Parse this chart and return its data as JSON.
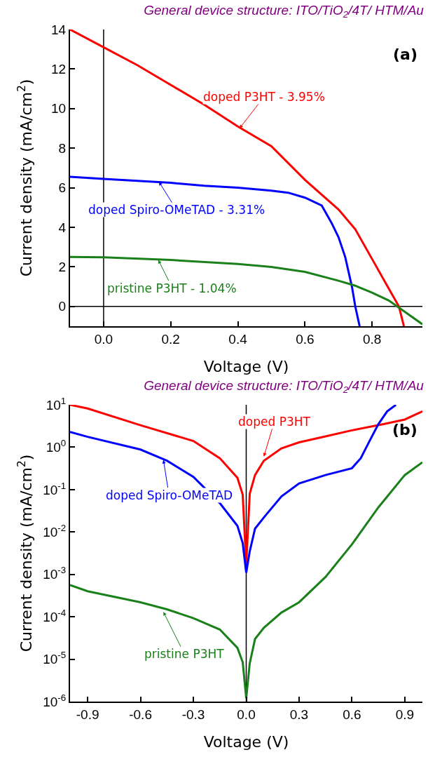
{
  "chart_data": [
    {
      "type": "line",
      "title": "General device structure: ITO/TiO$_{2}$/4T/ HTM/Au",
      "xlabel": "Voltage (V)",
      "ylabel": "Current density (mA/cm$^{2}$)",
      "xlim": [
        -0.1,
        0.95
      ],
      "ylim": [
        -1,
        14
      ],
      "xticks": [
        {
          "value": 0,
          "label": "0.0"
        },
        {
          "value": 0.2,
          "label": "0.2"
        },
        {
          "value": 0.4,
          "label": "0.4"
        },
        {
          "value": 0.6,
          "label": "0.6"
        },
        {
          "value": 0.8,
          "label": "0.8"
        }
      ],
      "yticks": [
        0,
        2,
        4,
        6,
        8,
        10,
        12,
        14
      ],
      "marker": "none",
      "line_style": "solid",
      "ref_lines": [
        {
          "axis": "x",
          "value": 0,
          "color": "#000000"
        },
        {
          "axis": "y",
          "value": 0,
          "color": "#000000"
        }
      ],
      "annotations": [
        "(a)",
        {
          "text": "doped P3HT - 3.95%",
          "x": 0.405,
          "y": 9.0
        },
        {
          "text": "doped Spiro-OMeTAD - 3.31%",
          "x": 0.165,
          "y": 6.3
        },
        {
          "text": "pristine P3HT - 1.04%",
          "x": 0.163,
          "y": 2.35
        }
      ],
      "series": [
        {
          "color": "#ff0000",
          "x": [
            -0.1,
            0,
            0.1,
            0.2,
            0.3,
            0.4,
            0.5,
            0.6,
            0.7,
            0.75,
            0.8,
            0.85,
            0.88,
            0.895
          ],
          "values": [
            14,
            13.1,
            12.2,
            11.2,
            10.2,
            9.1,
            8.1,
            6.4,
            4.9,
            3.9,
            2.4,
            0.9,
            0,
            -1
          ]
        },
        {
          "color": "#0000ff",
          "x": [
            -0.1,
            0,
            0.1,
            0.2,
            0.3,
            0.4,
            0.5,
            0.55,
            0.6,
            0.65,
            0.68,
            0.7,
            0.72,
            0.74,
            0.75,
            0.763
          ],
          "values": [
            6.55,
            6.45,
            6.35,
            6.25,
            6.1,
            6.0,
            5.85,
            5.75,
            5.5,
            5.1,
            4.2,
            3.5,
            2.5,
            1.0,
            0,
            -1
          ]
        },
        {
          "color": "#1a801a",
          "x": [
            -0.1,
            0,
            0.2,
            0.4,
            0.5,
            0.6,
            0.7,
            0.75,
            0.8,
            0.85,
            0.9,
            0.95
          ],
          "values": [
            2.5,
            2.48,
            2.35,
            2.15,
            2.0,
            1.75,
            1.3,
            1.05,
            0.7,
            0.3,
            -0.3,
            -0.9
          ]
        }
      ]
    },
    {
      "type": "line",
      "title": "General device structure: ITO/TiO$_{2}$/4T/ HTM/Au",
      "xlabel": "Voltage (V)",
      "ylabel": "Current density (mA/cm$^{2}$)",
      "log": "y",
      "xlim": [
        -1,
        1
      ],
      "ylim": [
        1e-06,
        10
      ],
      "xticks": [
        {
          "value": -0.9,
          "label": "-0.9"
        },
        {
          "value": -0.6,
          "label": "-0.6"
        },
        {
          "value": -0.3,
          "label": "-0.3"
        },
        {
          "value": 0,
          "label": "0.0"
        },
        {
          "value": 0.3,
          "label": "0.3"
        },
        {
          "value": 0.6,
          "label": "0.6"
        },
        {
          "value": 0.9,
          "label": "0.9"
        }
      ],
      "yticks": [
        {
          "value": 1e-06,
          "label": "10$^{-6}$"
        },
        {
          "value": 1e-05,
          "label": "10$^{-5}$"
        },
        {
          "value": 0.0001,
          "label": "10$^{-4}$"
        },
        {
          "value": 0.001,
          "label": "10$^{-3}$"
        },
        {
          "value": 0.01,
          "label": "10$^{-2}$"
        },
        {
          "value": 0.1,
          "label": "10$^{-1}$"
        },
        {
          "value": 1,
          "label": "10$^{0}$"
        },
        {
          "value": 10,
          "label": "10$^{1}$"
        }
      ],
      "marker": "none",
      "line_style": "solid",
      "ref_lines": [
        {
          "axis": "x",
          "value": 0,
          "color": "#000000"
        }
      ],
      "annotations": [
        "(b)",
        {
          "text": "doped P3HT",
          "x": 0.1,
          "y": 0.6
        },
        {
          "text": "doped Spiro-OMeTAD",
          "x": -0.47,
          "y": 0.5
        },
        {
          "text": "pristine P3HT",
          "x": -0.47,
          "y": 0.00013
        }
      ],
      "series": [
        {
          "color": "#ff0000",
          "x": [
            -1,
            -0.9,
            -0.6,
            -0.3,
            -0.15,
            -0.05,
            -0.02,
            0,
            0.02,
            0.05,
            0.1,
            0.2,
            0.3,
            0.45,
            0.6,
            0.78,
            0.9,
            0.95,
            1.0
          ],
          "values": [
            10,
            8.2,
            3.3,
            1.4,
            0.55,
            0.19,
            0.076,
            0.0017,
            0.08,
            0.22,
            0.48,
            0.94,
            1.3,
            1.8,
            2.5,
            3.5,
            4.5,
            5.6,
            7
          ]
        },
        {
          "color": "#0000ff",
          "x": [
            -1,
            -0.9,
            -0.6,
            -0.45,
            -0.3,
            -0.15,
            -0.05,
            -0.02,
            0,
            0.02,
            0.05,
            0.1,
            0.2,
            0.3,
            0.45,
            0.6,
            0.65,
            0.7,
            0.75,
            0.8,
            0.85
          ],
          "values": [
            2.3,
            1.76,
            0.88,
            0.48,
            0.2,
            0.048,
            0.014,
            0.0055,
            0.0011,
            0.0035,
            0.012,
            0.022,
            0.069,
            0.14,
            0.22,
            0.32,
            0.55,
            1.4,
            3.5,
            7,
            10
          ]
        },
        {
          "color": "#1a801a",
          "x": [
            -1,
            -0.9,
            -0.6,
            -0.45,
            -0.3,
            -0.15,
            -0.05,
            -0.02,
            0,
            0.02,
            0.05,
            0.1,
            0.2,
            0.3,
            0.45,
            0.6,
            0.75,
            0.9,
            1.0
          ],
          "values": [
            0.00056,
            0.0004,
            0.00022,
            0.00015,
            9.3e-05,
            5e-05,
            1.85e-05,
            8.5e-06,
            1.2e-06,
            8e-06,
            3e-05,
            5.5e-05,
            0.000126,
            0.00022,
            0.00087,
            0.0051,
            0.038,
            0.22,
            0.44
          ]
        }
      ]
    }
  ]
}
